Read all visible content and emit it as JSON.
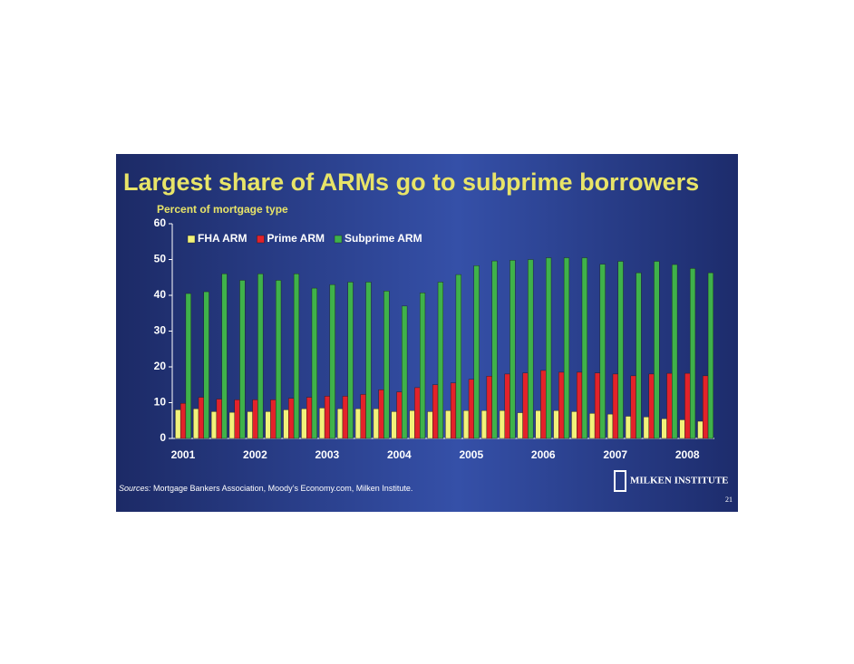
{
  "chart_data": {
    "type": "bar",
    "title": "Largest share of ARMs go to subprime borrowers",
    "y_label": "Percent of mortgage type",
    "categories": [
      "2001",
      null,
      null,
      null,
      "2002",
      null,
      null,
      null,
      "2003",
      null,
      null,
      null,
      "2004",
      null,
      null,
      null,
      "2005",
      null,
      null,
      null,
      "2006",
      null,
      null,
      null,
      "2007",
      null,
      null,
      null,
      "2008",
      null
    ],
    "series": [
      {
        "name": "FHA ARM",
        "color": "#f2f27a",
        "values": [
          8,
          8.3,
          7.5,
          7.3,
          7.5,
          7.5,
          8,
          8.3,
          8.5,
          8.3,
          8.3,
          8.3,
          7.5,
          7.8,
          7.5,
          7.8,
          7.8,
          7.8,
          7.8,
          7.2,
          7.8,
          7.8,
          7.5,
          7,
          6.8,
          6.2,
          6,
          5.5,
          5.2,
          4.8
        ]
      },
      {
        "name": "Prime ARM",
        "color": "#e3222a",
        "values": [
          9.8,
          11.5,
          11,
          10.8,
          10.8,
          10.8,
          11.2,
          11.5,
          11.8,
          11.8,
          12.3,
          13.6,
          13,
          14.2,
          15,
          15.5,
          16.5,
          17.4,
          18,
          18.3,
          19,
          18.5,
          18.5,
          18.3,
          18,
          17.5,
          18,
          18.2,
          18.2,
          17.5
        ]
      },
      {
        "name": "Subprime ARM",
        "color": "#3fb24a",
        "values": [
          40.5,
          41,
          46,
          44.2,
          46,
          44.2,
          46,
          42,
          43,
          43.7,
          43.7,
          41.2,
          37,
          40.7,
          43.7,
          45.8,
          48.3,
          49.6,
          49.8,
          50,
          50.5,
          50.5,
          50.5,
          48.7,
          49.5,
          46.3,
          49.5,
          48.6,
          47.5,
          46.3
        ]
      }
    ],
    "ylim": [
      0,
      60
    ],
    "yticks": [
      0,
      10,
      20,
      30,
      40,
      50,
      60
    ],
    "legend": "top-left"
  },
  "footer": {
    "source_label": "Sources:",
    "source_text": " Mortgage Bankers Association, Moody’s Economy.com, Milken Institute.",
    "logo": "MILKEN INSTITUTE",
    "page_number": "21"
  }
}
